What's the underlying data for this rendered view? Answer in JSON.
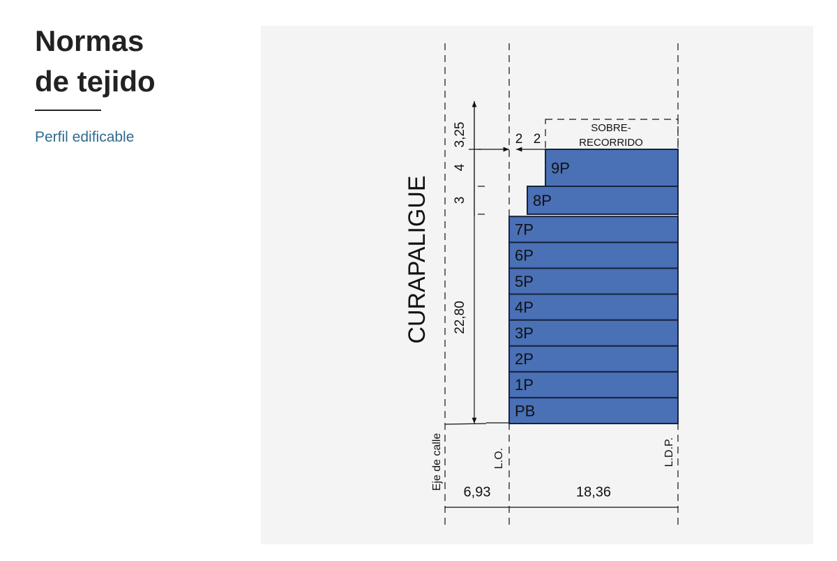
{
  "header": {
    "title_lines": [
      "Normas",
      "de tejido"
    ],
    "subtitle": "Perfil edificable"
  },
  "diagram": {
    "street": "CURAPALIGUE",
    "floors": [
      "PB",
      "1P",
      "2P",
      "3P",
      "4P",
      "5P",
      "6P",
      "7P",
      "8P",
      "9P"
    ],
    "heights": [
      "22,80",
      "3",
      "4",
      "3,25"
    ],
    "setbacks": [
      "2",
      "2"
    ],
    "over_label_lines": [
      "SOBRE-",
      "RECORRIDO"
    ],
    "axis_labels": [
      "Eje de calle",
      "L.O.",
      "L.D.P."
    ],
    "widths": [
      "6,93",
      "18,36"
    ]
  }
}
